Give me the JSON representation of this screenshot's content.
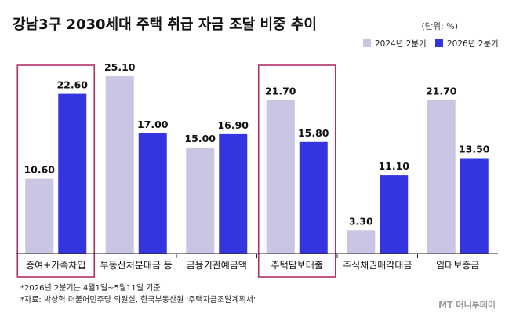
{
  "title": "강남3구 2030세대 주택 취급 자금 조달 비중 추이",
  "unit": "(단위: %)",
  "notes": [
    "*2026년 2분기는 4월1일~5월11일 기준",
    "*자료: 박상혁 더불어민주당 의원실, 한국부동산원 '주택자금조달계획서'"
  ],
  "watermark": "MT 머니투데이",
  "colors": {
    "series_2024": "#c8c6e2",
    "series_2026": "#3535e0",
    "highlight": "#b0306a"
  },
  "chart_data": {
    "type": "bar",
    "categories": [
      "증여+가족차입",
      "부동산처분대금 등",
      "금융기관예금액",
      "주택담보대출",
      "주식채권매각대금",
      "임대보증금"
    ],
    "series": [
      {
        "name": "2024년 2분기",
        "values": [
          10.6,
          25.1,
          15.0,
          21.7,
          3.3,
          21.7
        ],
        "labels": [
          "10.60",
          "25.10",
          "15.00",
          "21.70",
          "3.30",
          "21.70"
        ]
      },
      {
        "name": "2026년 2분기",
        "values": [
          22.6,
          17.0,
          16.9,
          15.8,
          11.1,
          13.5
        ],
        "labels": [
          "22.60",
          "17.00",
          "16.90",
          "15.80",
          "11.10",
          "13.50"
        ]
      }
    ],
    "ylim": [
      0,
      30
    ],
    "highlighted_categories": [
      "증여+가족차입",
      "주택담보대출"
    ],
    "legend_position": "top-right",
    "grid": false
  }
}
